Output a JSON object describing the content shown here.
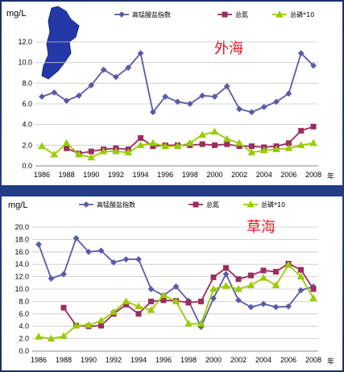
{
  "colors": {
    "series": [
      "#5a5aa8",
      "#9c2d5c",
      "#99cc00"
    ],
    "grid": "#c8c8c8",
    "region_label": "#e0141e",
    "map_fill": "#2438a8"
  },
  "chart_data": [
    {
      "type": "line",
      "unit_label": "mg/L",
      "region_label": "外海",
      "x_suffix": "年",
      "x": [
        1986,
        1987,
        1988,
        1989,
        1990,
        1991,
        1992,
        1993,
        1994,
        1995,
        1996,
        1997,
        1998,
        1999,
        2000,
        2001,
        2002,
        2003,
        2004,
        2005,
        2006,
        2007,
        2008
      ],
      "xticks": [
        1986,
        1988,
        1990,
        1992,
        1994,
        1996,
        1998,
        2000,
        2002,
        2004,
        2006,
        2008
      ],
      "ylim": [
        0,
        12
      ],
      "yticks": [
        "0.0",
        "2.0",
        "4.0",
        "6.0",
        "8.0",
        "10.0",
        "12.0"
      ],
      "grid": true,
      "legend_position": "top",
      "series": [
        {
          "name": "高锰酸盐指数",
          "marker": "diamond",
          "values": [
            6.7,
            7.1,
            6.3,
            6.8,
            7.8,
            9.3,
            8.6,
            9.5,
            10.9,
            5.2,
            6.7,
            6.2,
            6.0,
            6.8,
            6.7,
            7.7,
            5.5,
            5.2,
            5.7,
            6.2,
            7.0,
            10.9,
            9.7
          ]
        },
        {
          "name": "总氮",
          "marker": "square",
          "values": [
            null,
            null,
            1.7,
            1.2,
            1.4,
            1.6,
            1.7,
            1.6,
            2.7,
            1.9,
            2.0,
            2.0,
            2.0,
            2.1,
            2.0,
            2.1,
            1.9,
            1.9,
            1.8,
            1.9,
            2.2,
            3.4,
            3.8
          ]
        },
        {
          "name": "总磷*10",
          "marker": "triangle",
          "values": [
            1.9,
            1.1,
            2.2,
            1.1,
            0.8,
            1.4,
            1.4,
            1.3,
            2.0,
            2.2,
            1.9,
            1.9,
            2.2,
            3.0,
            3.3,
            2.6,
            2.2,
            1.3,
            1.5,
            1.6,
            1.7,
            2.0,
            2.2
          ]
        }
      ]
    },
    {
      "type": "line",
      "unit_label": "mg/L",
      "region_label": "草海",
      "x_suffix": "年",
      "x": [
        1986,
        1987,
        1988,
        1989,
        1990,
        1991,
        1992,
        1993,
        1994,
        1995,
        1996,
        1997,
        1998,
        1999,
        2000,
        2001,
        2002,
        2003,
        2004,
        2005,
        2006,
        2007,
        2008
      ],
      "xticks": [
        1986,
        1988,
        1990,
        1992,
        1994,
        1996,
        1998,
        2000,
        2002,
        2004,
        2006,
        2008
      ],
      "ylim": [
        0,
        20
      ],
      "yticks": [
        "0.0",
        "2.0",
        "4.0",
        "6.0",
        "8.0",
        "10.0",
        "12.0",
        "14.0",
        "16.0",
        "18.0",
        "20.0"
      ],
      "grid": true,
      "legend_position": "top",
      "series": [
        {
          "name": "高锰酸盐指数",
          "marker": "diamond",
          "values": [
            17.2,
            11.7,
            12.4,
            18.2,
            16.0,
            16.2,
            14.3,
            14.8,
            14.8,
            10.0,
            9.0,
            10.4,
            8.1,
            3.9,
            8.5,
            12.4,
            8.2,
            7.1,
            7.6,
            7.1,
            7.2,
            9.8,
            10.4
          ]
        },
        {
          "name": "总氮",
          "marker": "square",
          "values": [
            null,
            null,
            7.0,
            4.1,
            4.0,
            4.1,
            6.0,
            7.5,
            6.0,
            8.0,
            8.2,
            8.1,
            7.8,
            8.0,
            11.9,
            13.4,
            11.6,
            12.2,
            13.0,
            12.8,
            14.1,
            13.1,
            10.0
          ]
        },
        {
          "name": "总磷*10",
          "marker": "triangle",
          "values": [
            2.3,
            2.0,
            2.4,
            4.1,
            4.2,
            4.9,
            6.3,
            8.0,
            7.2,
            6.6,
            9.0,
            8.0,
            4.4,
            4.4,
            10.0,
            10.5,
            10.0,
            10.6,
            11.8,
            10.6,
            13.9,
            12.0,
            8.5
          ]
        }
      ]
    }
  ]
}
